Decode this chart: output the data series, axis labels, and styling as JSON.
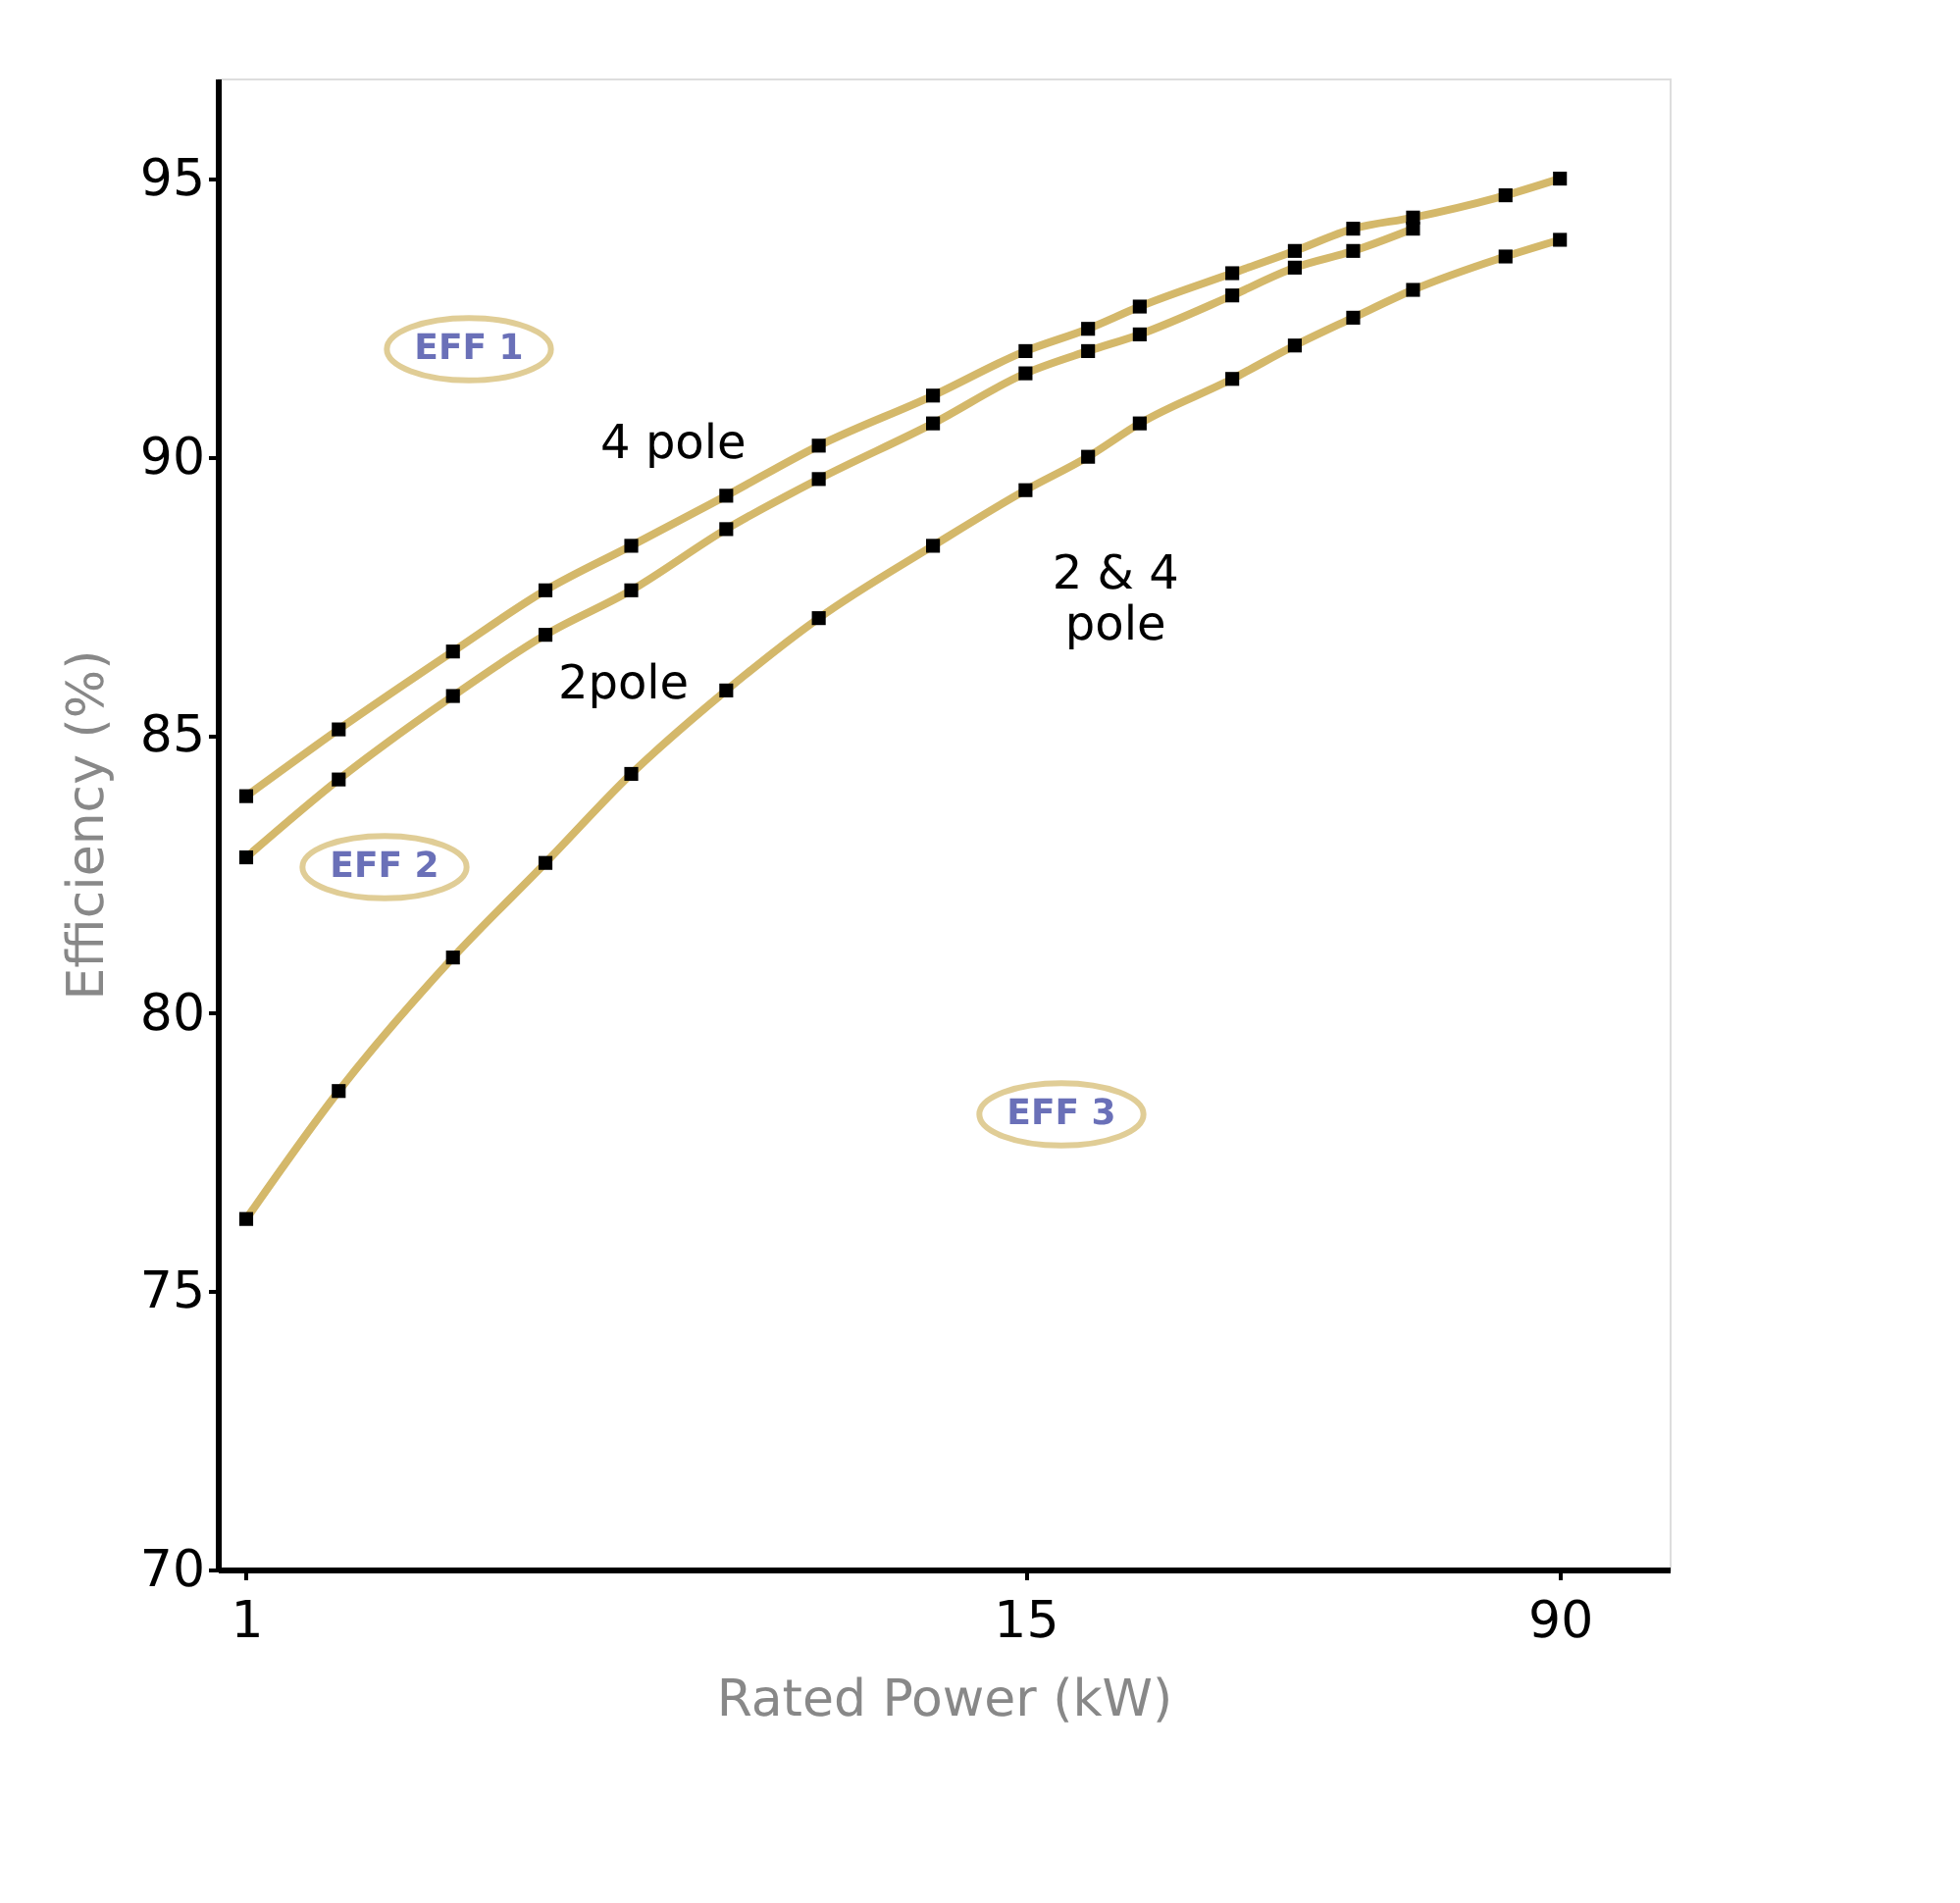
{
  "chart_data": {
    "type": "line",
    "xlabel": "Rated Power (kW)",
    "ylabel": "Efficiency (%)",
    "x": [
      1.1,
      1.5,
      2.2,
      3,
      4,
      5.5,
      7.5,
      11,
      15,
      18.5,
      22,
      30,
      37,
      45,
      55,
      75,
      90
    ],
    "series": [
      {
        "name": "4 pole",
        "color": "#d4b86a",
        "values": [
          83.9,
          85.1,
          86.5,
          87.6,
          88.4,
          89.3,
          90.2,
          91.1,
          91.9,
          92.3,
          92.7,
          93.3,
          93.7,
          94.1,
          94.3,
          94.7,
          95.0
        ]
      },
      {
        "name": "2pole",
        "color": "#d4b86a",
        "values": [
          82.8,
          84.2,
          85.7,
          86.8,
          87.6,
          88.7,
          89.6,
          90.6,
          91.5,
          91.9,
          92.2,
          92.9,
          93.4,
          93.7,
          94.1,
          null,
          null
        ]
      },
      {
        "name": "2 & 4 pole",
        "color": "#d4b86a",
        "values": [
          76.3,
          78.6,
          81.0,
          82.7,
          84.3,
          85.8,
          87.1,
          88.4,
          89.4,
          90.0,
          90.6,
          91.4,
          92.0,
          92.5,
          93.0,
          93.6,
          93.9
        ]
      }
    ],
    "marker": "square",
    "log": "x",
    "xlim": [
      1,
      130
    ],
    "xticks": [
      {
        "value": 1.1,
        "label": "1"
      },
      15,
      90
    ],
    "ylim": [
      70,
      96.8
    ],
    "yticks": [
      70,
      75,
      80,
      85,
      90,
      95
    ],
    "grid": false,
    "legend": false,
    "annotations": [
      "EFF 1",
      "EFF 2",
      "EFF 3"
    ]
  }
}
